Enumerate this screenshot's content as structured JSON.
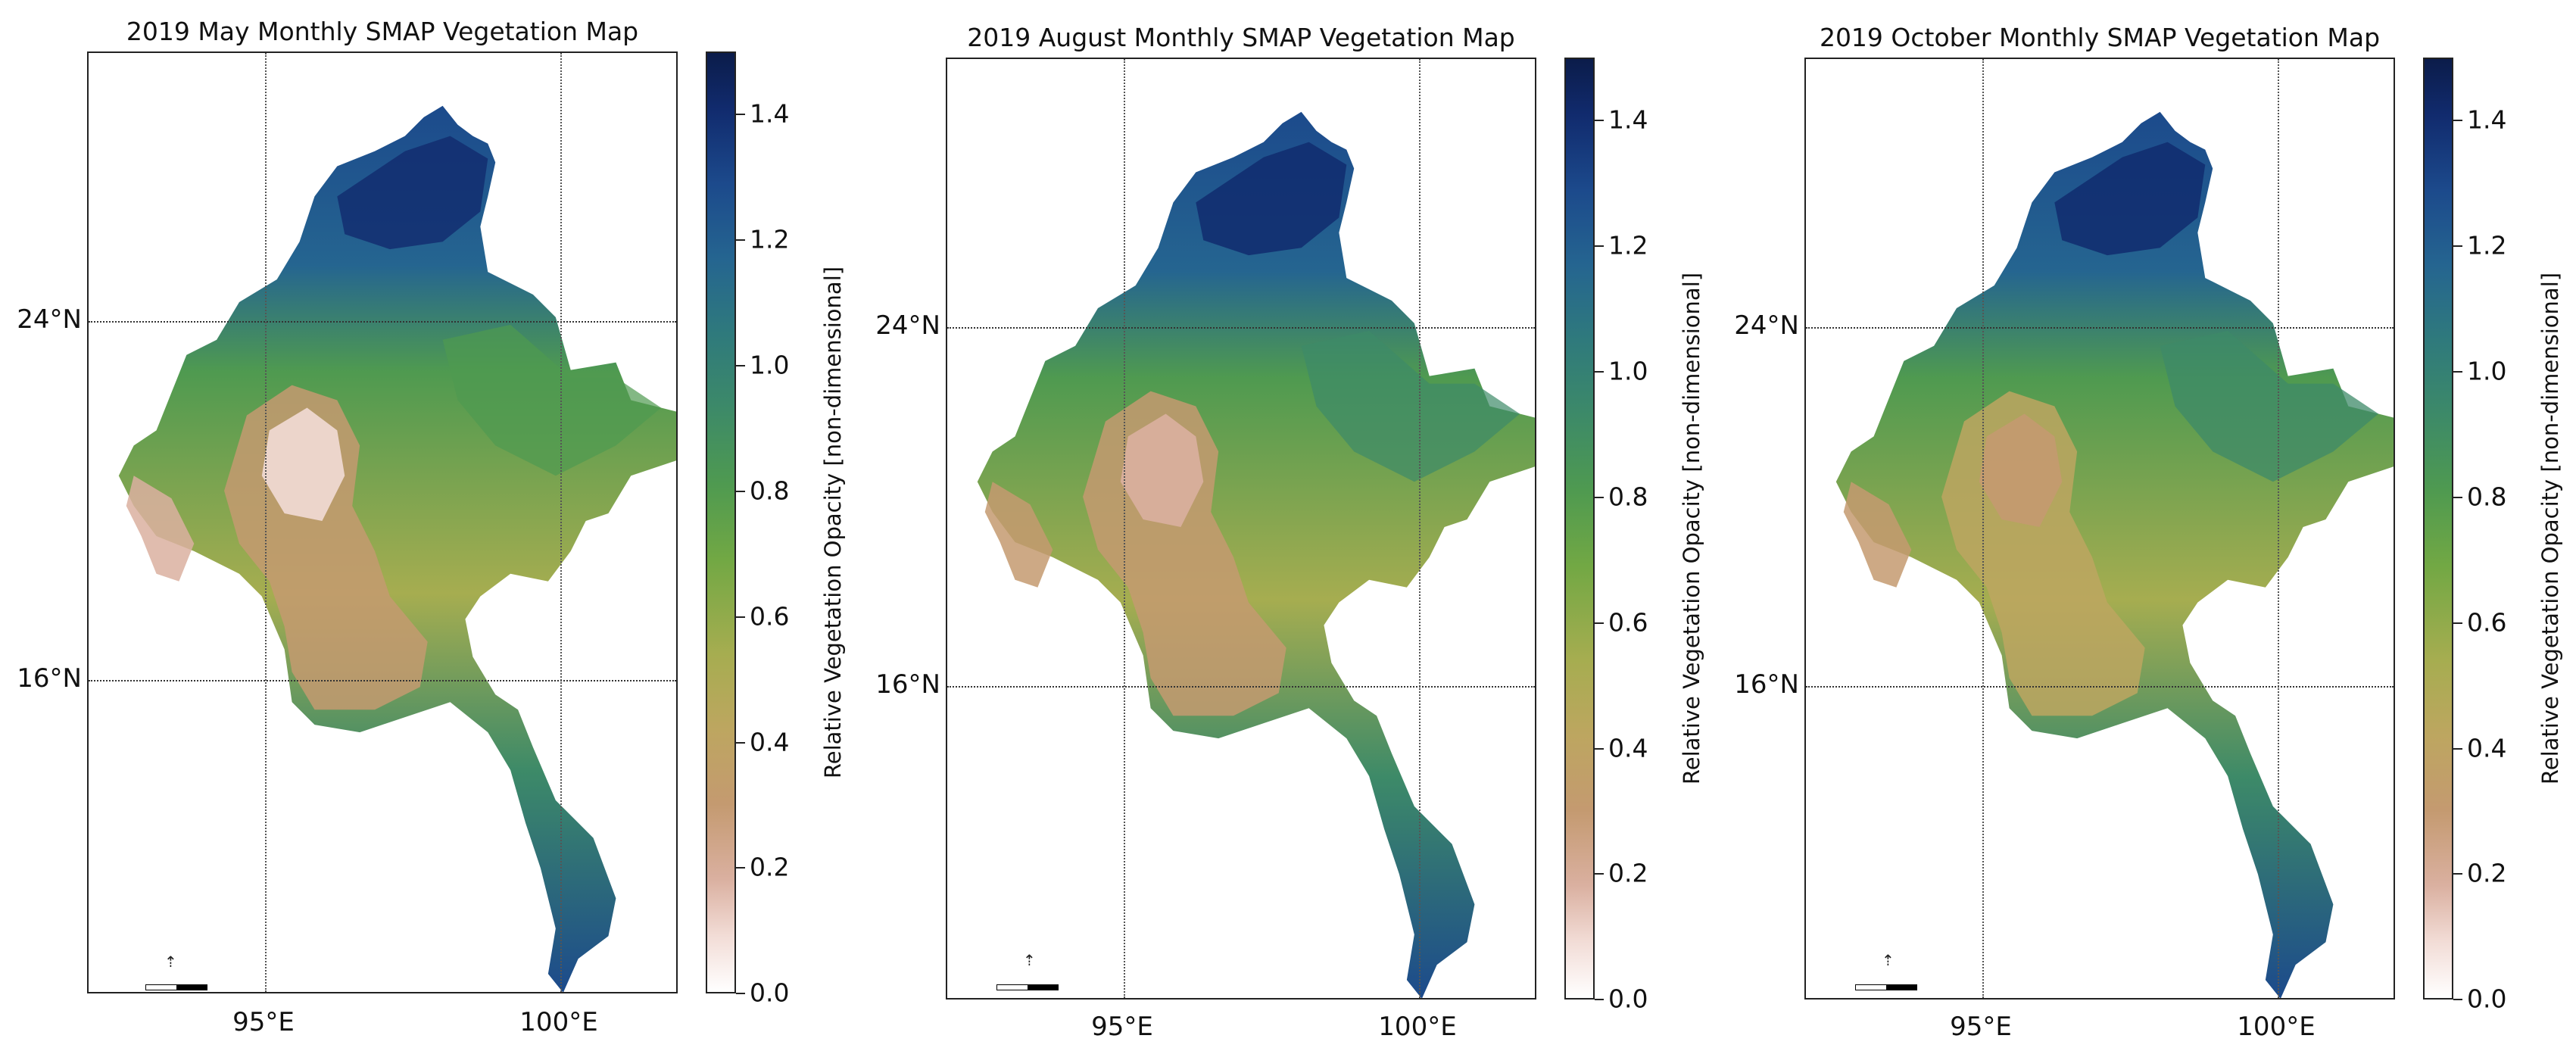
{
  "panels": [
    {
      "title": "2019 May Monthly SMAP Vegetation Map",
      "lat_labels": [
        "24°N",
        "16°N"
      ],
      "lon_labels": [
        "95°E",
        "100°E"
      ],
      "colorbar": {
        "label": "Relative Vegetation Opacity [non-dimensional]",
        "ticks": [
          "0.0",
          "0.2",
          "0.4",
          "0.6",
          "0.8",
          "1.0",
          "1.2",
          "1.4"
        ],
        "range": [
          0.0,
          1.5
        ]
      }
    },
    {
      "title": "2019 August Monthly SMAP Vegetation Map",
      "lat_labels": [
        "24°N",
        "16°N"
      ],
      "lon_labels": [
        "95°E",
        "100°E"
      ],
      "colorbar": {
        "label": "Relative Vegetation Opacity [non-dimensional]",
        "ticks": [
          "0.0",
          "0.2",
          "0.4",
          "0.6",
          "0.8",
          "1.0",
          "1.2",
          "1.4"
        ],
        "range": [
          0.0,
          1.5
        ]
      }
    },
    {
      "title": "2019 October Monthly SMAP Vegetation Map",
      "lat_labels": [
        "24°N",
        "16°N"
      ],
      "lon_labels": [
        "95°E",
        "100°E"
      ],
      "colorbar": {
        "label": "Relative Vegetation Opacity [non-dimensional]",
        "ticks": [
          "0.0",
          "0.2",
          "0.4",
          "0.6",
          "0.8",
          "1.0",
          "1.2",
          "1.4"
        ],
        "range": [
          0.0,
          1.5
        ]
      }
    }
  ],
  "colors": {
    "low": "#ffffff",
    "sand": "#c49a70",
    "olive": "#bda660",
    "green": "#4f9a50",
    "teal": "#2f7a7c",
    "blue": "#1c4a8c",
    "high": "#0b1c4a"
  }
}
